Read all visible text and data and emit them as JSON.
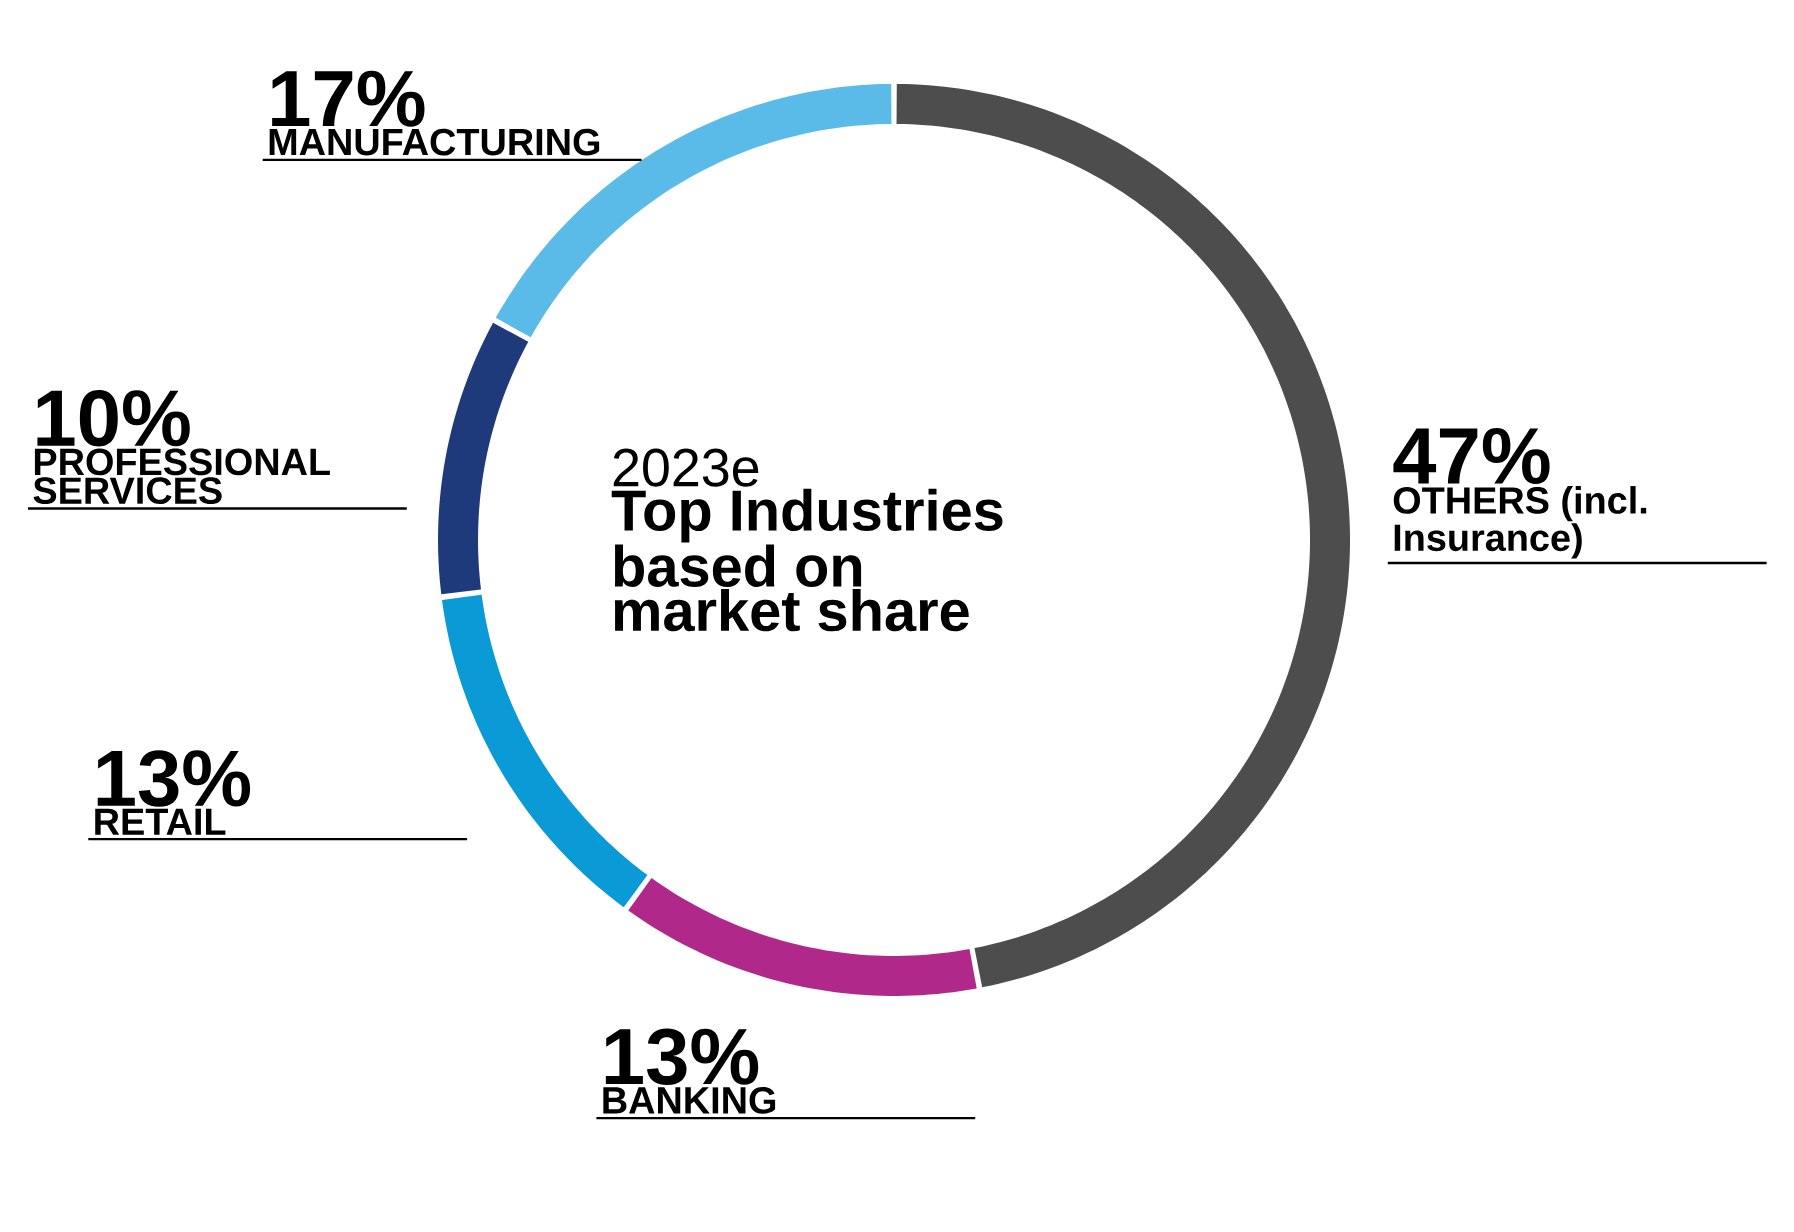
{
  "chart_data": {
    "type": "donut",
    "title": "2023e",
    "subtitle": "Top Industries based on market share",
    "categories": [
      "OTHERS (incl. Insurance)",
      "BANKING",
      "RETAIL",
      "PROFESSIONAL SERVICES",
      "MANUFACTURING"
    ],
    "values": [
      47,
      13,
      13,
      10,
      17
    ],
    "colors": [
      "#4d4d4d",
      "#b0288a",
      "#0a9ad6",
      "#1f3a7a",
      "#5bbbe8"
    ],
    "value_labels": [
      "47%",
      "13%",
      "13%",
      "10%",
      "17%"
    ]
  }
}
